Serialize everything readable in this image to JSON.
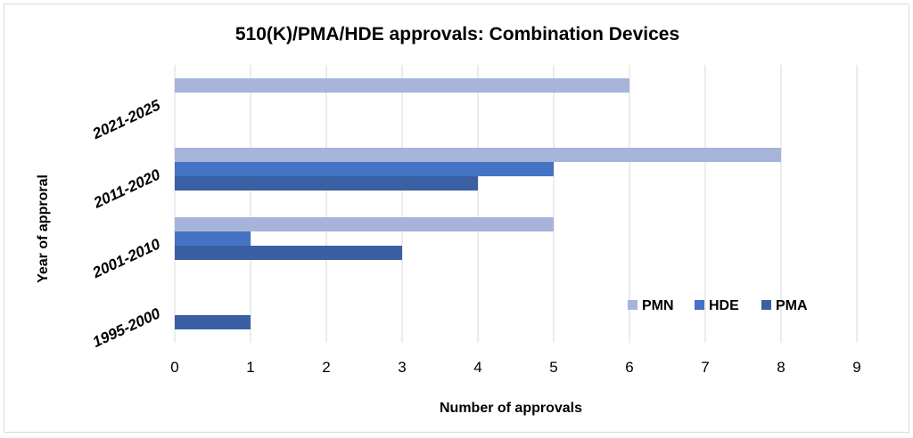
{
  "chart_data": {
    "type": "bar",
    "orientation": "horizontal",
    "title": "510(K)/PMA/HDE approvals: Combination Devices",
    "xlabel": "Number of approvals",
    "ylabel": "Year of approral",
    "xlim": [
      0,
      9
    ],
    "xticks": [
      0,
      1,
      2,
      3,
      4,
      5,
      6,
      7,
      8,
      9
    ],
    "grid": true,
    "legend_position": "bottom-right",
    "categories": [
      "1995-2000",
      "2001-2010",
      "2011-2020",
      "2021-2025"
    ],
    "series": [
      {
        "name": "PMA",
        "color": "#3a5fa3",
        "values": [
          1,
          3,
          4,
          0
        ]
      },
      {
        "name": "HDE",
        "color": "#4472c4",
        "values": [
          0,
          1,
          5,
          0
        ]
      },
      {
        "name": "PMN",
        "color": "#a7b4da",
        "values": [
          0,
          5,
          8,
          6
        ]
      }
    ],
    "legend_order": [
      "PMN",
      "HDE",
      "PMA"
    ]
  }
}
